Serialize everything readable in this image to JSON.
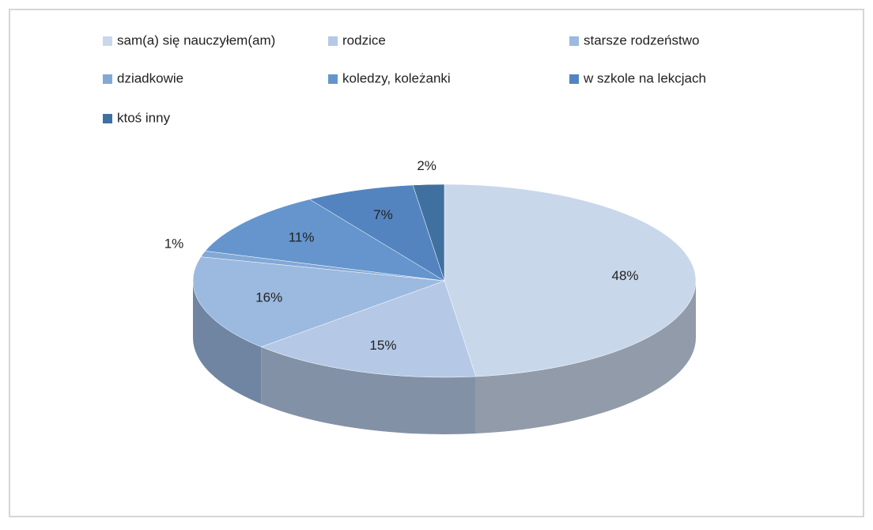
{
  "chart_data": {
    "type": "pie",
    "categories": [
      "sam(a) się nauczyłem(am)",
      "rodzice",
      "starsze rodzeństwo",
      "dziadkowie",
      "koledzy, koleżanki",
      "w szkole na lekcjach",
      "ktoś inny"
    ],
    "values": [
      48,
      15,
      16,
      1,
      11,
      7,
      2
    ],
    "value_labels": [
      "48%",
      "15%",
      "16%",
      "1%",
      "11%",
      "7%",
      "2%"
    ],
    "colors": [
      "#c9d7eb",
      "#b5c9e6",
      "#9cb9df",
      "#82a8d6",
      "#6595cc",
      "#5384c0",
      "#40709f"
    ],
    "legend": "top"
  }
}
